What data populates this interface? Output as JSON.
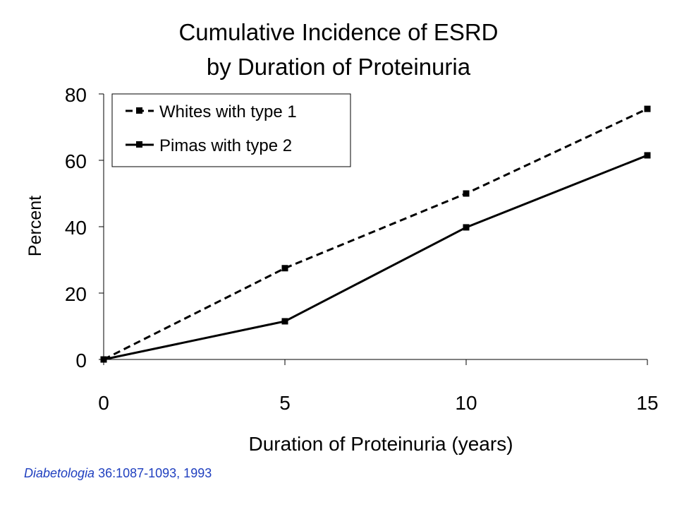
{
  "chart_data": {
    "type": "line",
    "title_lines": [
      "Cumulative Incidence of ESRD",
      "by Duration of Proteinuria"
    ],
    "xlabel": "Duration of Proteinuria (years)",
    "ylabel": "Percent",
    "xlim": [
      0,
      15
    ],
    "ylim": [
      0,
      80
    ],
    "x_ticks": [
      0,
      5,
      10,
      15
    ],
    "y_ticks": [
      0,
      20,
      40,
      60,
      80
    ],
    "x_tick_labels": [
      "0",
      "5",
      "10",
      "15"
    ],
    "y_tick_labels": [
      "0",
      "20",
      "40",
      "60",
      "80"
    ],
    "grid": false,
    "legend_position": "top-left",
    "series": [
      {
        "name": "Whites with type 1",
        "line_style": "dashed",
        "marker": "square",
        "color": "#000000",
        "x": [
          0,
          5,
          10,
          15
        ],
        "y": [
          0,
          27.5,
          50,
          75.5
        ]
      },
      {
        "name": "Pimas with type 2",
        "line_style": "solid",
        "marker": "square",
        "color": "#000000",
        "x": [
          0,
          5,
          10,
          15
        ],
        "y": [
          0,
          11.5,
          39.8,
          61.5
        ]
      }
    ]
  },
  "citation": {
    "journal": "Diabetologia",
    "details": " 36:1087-1093, 1993",
    "color": "#1f3fbf"
  }
}
